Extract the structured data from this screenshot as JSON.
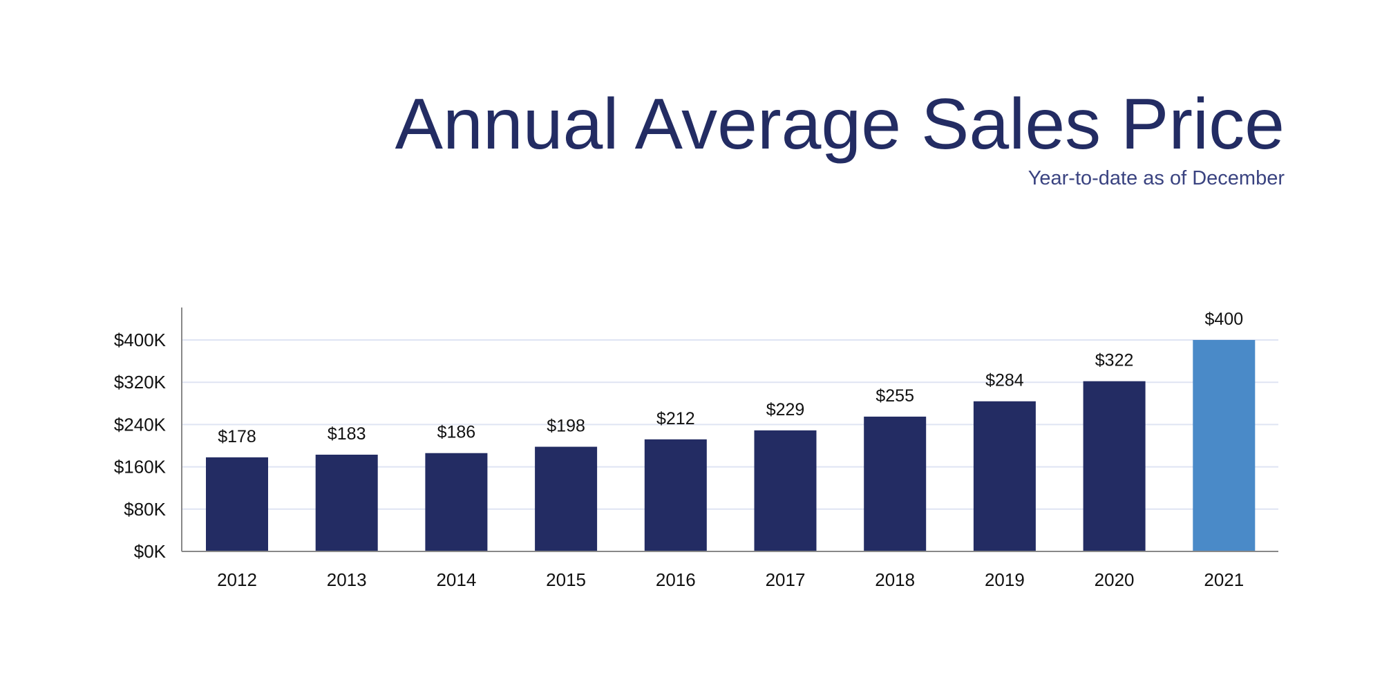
{
  "chart_data": {
    "type": "bar",
    "title": "Annual Average Sales Price",
    "subtitle": "Year-to-date as of December",
    "xlabel": "",
    "ylabel": "",
    "categories": [
      "2012",
      "2013",
      "2014",
      "2015",
      "2016",
      "2017",
      "2018",
      "2019",
      "2020",
      "2021"
    ],
    "values": [
      178,
      183,
      186,
      198,
      212,
      229,
      255,
      284,
      322,
      400
    ],
    "value_labels": [
      "$178",
      "$183",
      "$186",
      "$198",
      "$212",
      "$229",
      "$255",
      "$284",
      "$322",
      "$400"
    ],
    "ylim": [
      0,
      400
    ],
    "yticks": [
      0,
      80,
      160,
      240,
      320,
      400
    ],
    "ytick_labels": [
      "$0K",
      "$80K",
      "$160K",
      "$240K",
      "$320K",
      "$400K"
    ],
    "grid": true,
    "colors": {
      "bar": "#232c63",
      "highlight": "#4a8ac8",
      "grid": "#dfe4f3",
      "axis": "#888888",
      "title": "#232c63"
    },
    "highlight_category": "2021"
  }
}
